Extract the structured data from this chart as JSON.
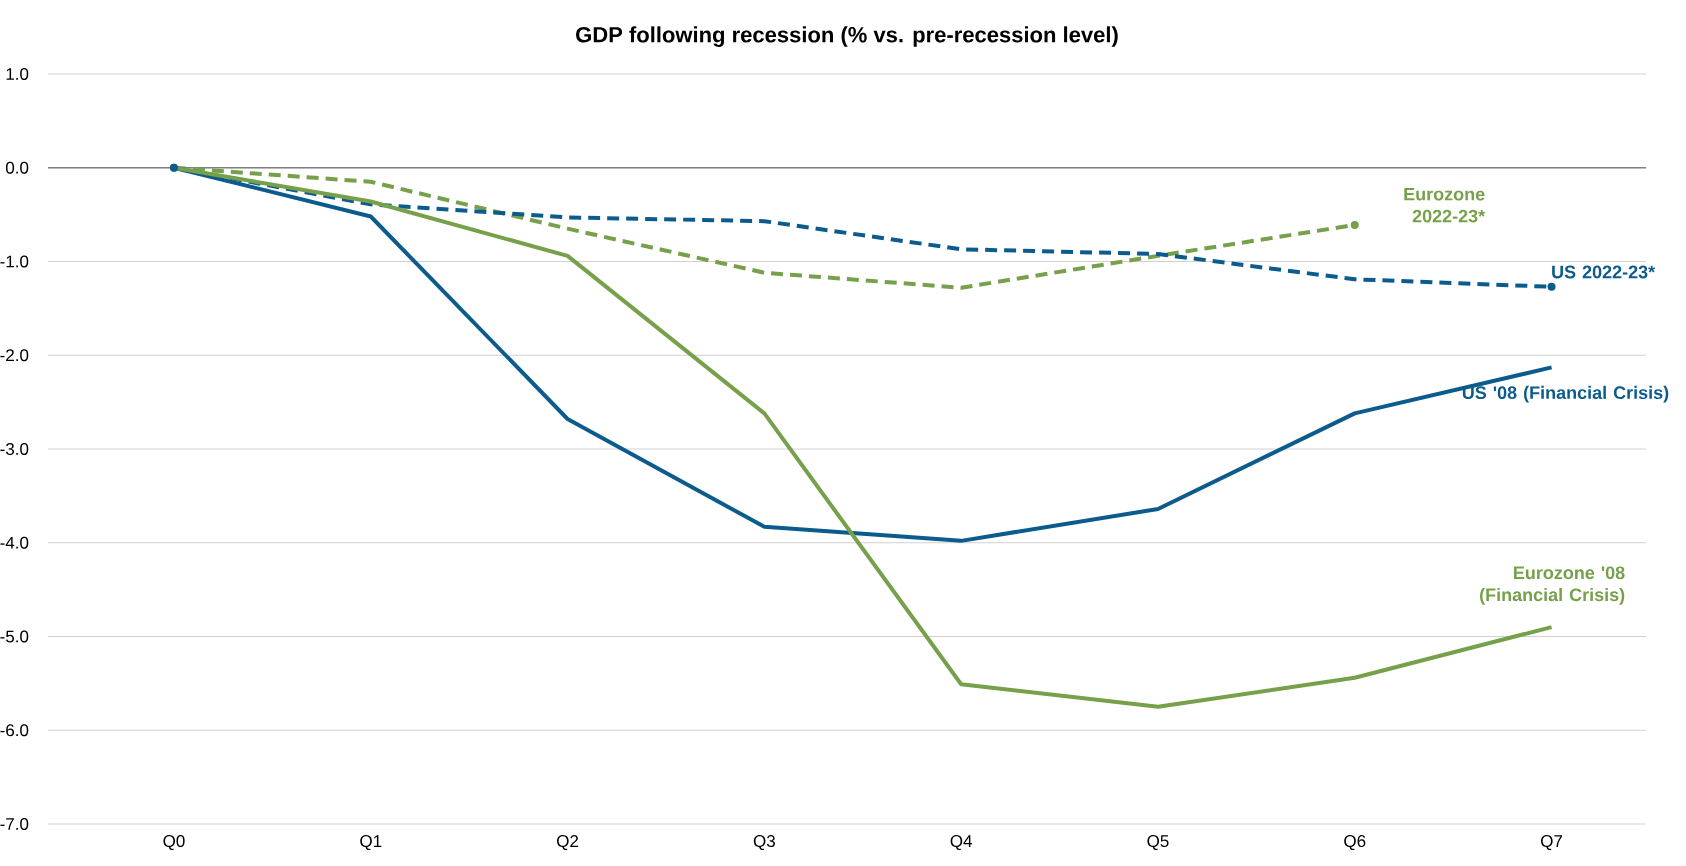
{
  "chart_data": {
    "type": "line",
    "title": "GDP following recession (% vs. pre-recession level)",
    "categories": [
      "Q0",
      "Q1",
      "Q2",
      "Q3",
      "Q4",
      "Q5",
      "Q6",
      "Q7"
    ],
    "series": [
      {
        "name": "Eurozone 2022-23*",
        "color": "#76a04a",
        "line_style": "dashed",
        "values": [
          0,
          -0.15,
          -0.65,
          -1.12,
          -1.28,
          -0.94,
          -0.61,
          null
        ]
      },
      {
        "name": "US 2022-23*",
        "color": "#0b5b8c",
        "line_style": "dashed",
        "values": [
          0,
          -0.39,
          -0.53,
          -0.57,
          -0.87,
          -0.92,
          -1.19,
          -1.27
        ]
      },
      {
        "name": "US '08 (Financial Crisis)",
        "color": "#0b5b8c",
        "line_style": "solid",
        "values": [
          0,
          -0.52,
          -2.68,
          -3.83,
          -3.98,
          -3.64,
          -2.62,
          -2.13
        ]
      },
      {
        "name": "Eurozone '08 (Financial Crisis)",
        "color": "#76a04a",
        "line_style": "solid",
        "values": [
          0,
          -0.36,
          -0.94,
          -2.62,
          -5.51,
          -5.75,
          -5.44,
          -4.9
        ]
      }
    ],
    "ylim": [
      -7,
      1
    ],
    "yticks": [
      {
        "value": -7,
        "label": "-7.0"
      },
      {
        "value": -6,
        "label": "-6.0"
      },
      {
        "value": -5,
        "label": "-5.0"
      },
      {
        "value": -4,
        "label": "-4.0"
      },
      {
        "value": -3,
        "label": "-3.0"
      },
      {
        "value": -2,
        "label": "-2.0"
      },
      {
        "value": -1,
        "label": "-1.0"
      },
      {
        "value": 0,
        "label": "0.0"
      },
      {
        "value": 1,
        "label": "1.0"
      }
    ],
    "grid": "y",
    "legend": false,
    "marker": "none",
    "ref_lines": [
      {
        "axis": "y",
        "value": 0,
        "color": "#808080"
      }
    ]
  }
}
